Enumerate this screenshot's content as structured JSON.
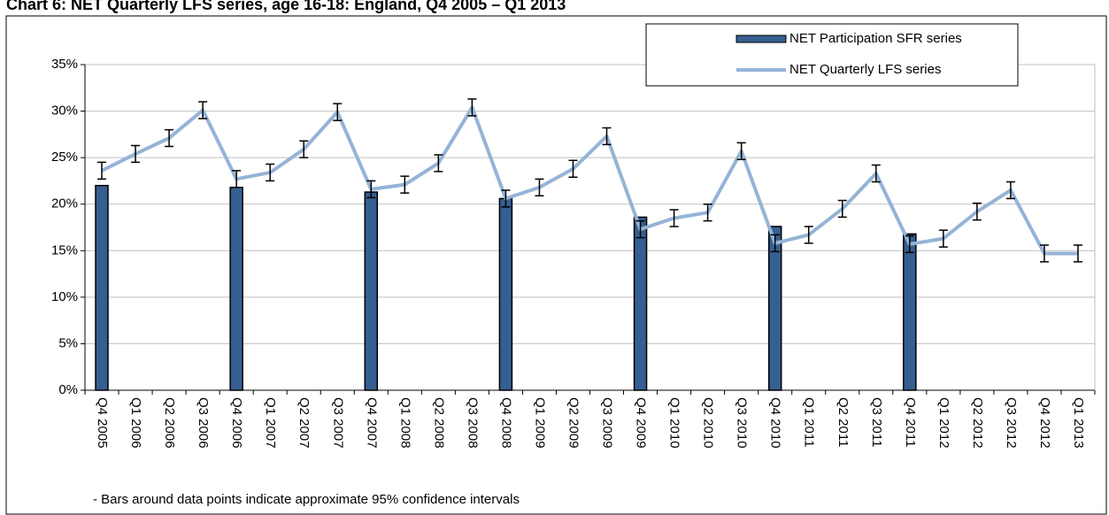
{
  "chart_data": {
    "type": "bar_line",
    "title": "Chart 6: NET Quarterly LFS series, age 16-18: England, Q4 2005 – Q1 2013",
    "categories": [
      "Q4 2005",
      "Q1 2006",
      "Q2 2006",
      "Q3 2006",
      "Q4 2006",
      "Q1 2007",
      "Q2 2007",
      "Q3 2007",
      "Q4 2007",
      "Q1 2008",
      "Q2 2008",
      "Q3 2008",
      "Q4 2008",
      "Q1 2009",
      "Q2 2009",
      "Q3 2009",
      "Q4 2009",
      "Q1 2010",
      "Q2 2010",
      "Q3 2010",
      "Q4 2010",
      "Q1 2011",
      "Q2 2011",
      "Q3 2011",
      "Q4 2011",
      "Q1 2012",
      "Q2 2012",
      "Q3 2012",
      "Q4 2012",
      "Q1 2013"
    ],
    "series": [
      {
        "name": "NET Participation SFR series",
        "type": "bar",
        "color": "#365f91",
        "values": [
          22.0,
          null,
          null,
          null,
          21.8,
          null,
          null,
          null,
          21.3,
          null,
          null,
          null,
          20.6,
          null,
          null,
          null,
          18.6,
          null,
          null,
          null,
          17.6,
          null,
          null,
          null,
          16.8,
          null,
          null,
          null,
          null,
          null
        ]
      },
      {
        "name": "NET Quarterly LFS series",
        "type": "line",
        "color": "#95b3d7",
        "values": [
          23.6,
          25.4,
          27.1,
          30.1,
          22.7,
          23.4,
          25.9,
          29.9,
          21.6,
          22.1,
          24.4,
          30.4,
          20.6,
          21.8,
          23.8,
          27.3,
          17.3,
          18.5,
          19.1,
          25.7,
          15.8,
          16.7,
          19.5,
          23.3,
          15.7,
          16.3,
          19.2,
          21.5,
          14.7,
          14.7
        ],
        "errors": [
          0.9,
          0.9,
          0.9,
          0.9,
          0.9,
          0.9,
          0.9,
          0.9,
          0.9,
          0.9,
          0.9,
          0.9,
          0.9,
          0.9,
          0.9,
          0.9,
          0.9,
          0.9,
          0.9,
          0.9,
          0.9,
          0.9,
          0.9,
          0.9,
          0.9,
          0.9,
          0.9,
          0.9,
          0.9,
          0.9
        ]
      }
    ],
    "ylim": [
      0,
      35
    ],
    "yticks": [
      {
        "value": 0,
        "label": "0%"
      },
      {
        "value": 5,
        "label": "5%"
      },
      {
        "value": 10,
        "label": "10%"
      },
      {
        "value": 15,
        "label": "15%"
      },
      {
        "value": 20,
        "label": "20%"
      },
      {
        "value": 25,
        "label": "25%"
      },
      {
        "value": 30,
        "label": "30%"
      },
      {
        "value": 35,
        "label": "35%"
      }
    ],
    "grid": true,
    "legend": "top-right",
    "note": "- Bars around data points indicate approximate 95% confidence intervals"
  }
}
